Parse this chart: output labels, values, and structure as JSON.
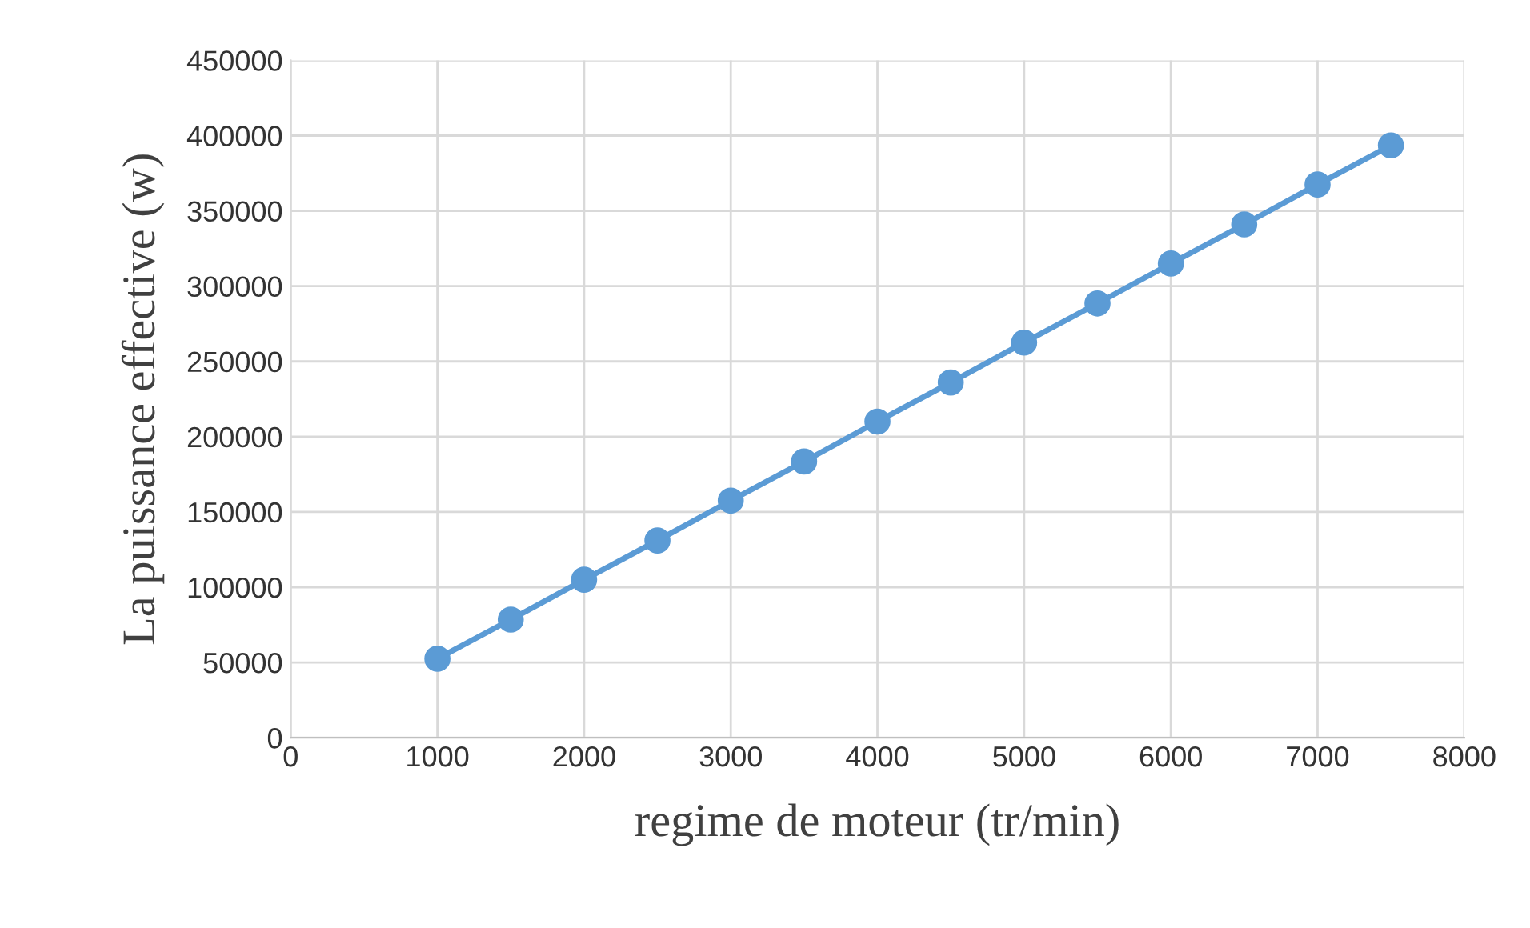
{
  "chart_data": {
    "type": "line",
    "xlabel": "regime de moteur (tr/min)",
    "ylabel": "La puissance effective (w)",
    "x": [
      1000,
      1500,
      2000,
      2500,
      3000,
      3500,
      4000,
      4500,
      5000,
      5500,
      6000,
      6500,
      7000,
      7500
    ],
    "series": [
      {
        "color": "#5b9bd5",
        "values": [
          52500,
          78500,
          105000,
          131000,
          157500,
          183500,
          210000,
          236000,
          262500,
          288500,
          315000,
          341000,
          367500,
          393500
        ]
      }
    ],
    "xlim": [
      0,
      8000
    ],
    "xticks": [
      0,
      1000,
      2000,
      3000,
      4000,
      5000,
      6000,
      7000,
      8000
    ],
    "ylim": [
      0,
      450000
    ],
    "yticks": [
      0,
      50000,
      100000,
      150000,
      200000,
      250000,
      300000,
      350000,
      400000,
      450000
    ],
    "grid": true,
    "marker": "circle",
    "line_style": "solid",
    "legend": false
  }
}
